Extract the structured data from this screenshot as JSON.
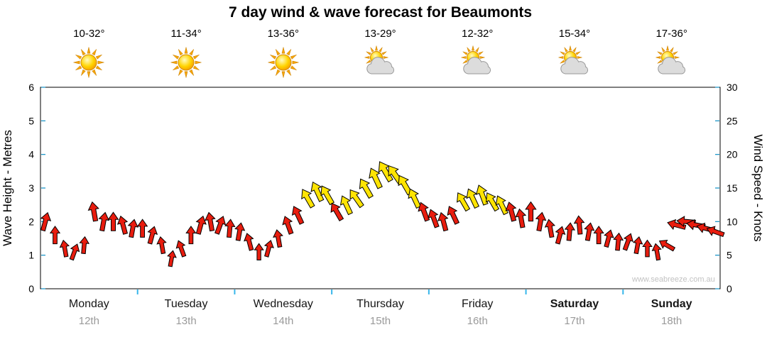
{
  "title": "7 day wind & wave forecast for Beaumonts",
  "watermark": "www.seabreeze.com.au",
  "colors": {
    "light_wind": "#e81c0e",
    "moderate_wind": "#ffe402",
    "arrow_outline": "#000000",
    "tick": "#1e96c8",
    "day_tick": "#38b6ea",
    "plot_border": "#000000",
    "date_text": "#9a9a9a"
  },
  "chart_data": {
    "type": "scatter",
    "subtype": "wind-direction-arrows",
    "title": "7 day wind & wave forecast for Beaumonts",
    "y_axis_left": {
      "label": "Wave Height - Metres",
      "min": 0,
      "max": 6,
      "ticks": [
        0,
        1,
        2,
        3,
        4,
        5,
        6
      ]
    },
    "y_axis_right": {
      "label": "Wind Speed - Knots",
      "min": 0,
      "max": 30,
      "ticks": [
        0,
        5,
        10,
        15,
        20,
        25,
        30
      ]
    },
    "days": [
      {
        "name": "Monday",
        "date": "12th",
        "temp": "10-32°",
        "icon": "sunny",
        "weekend": false
      },
      {
        "name": "Tuesday",
        "date": "13th",
        "temp": "11-34°",
        "icon": "sunny",
        "weekend": false
      },
      {
        "name": "Wednesday",
        "date": "14th",
        "temp": "13-36°",
        "icon": "sunny",
        "weekend": false
      },
      {
        "name": "Thursday",
        "date": "15th",
        "temp": "13-29°",
        "icon": "partly-cloudy",
        "weekend": false
      },
      {
        "name": "Friday",
        "date": "16th",
        "temp": "12-32°",
        "icon": "partly-cloudy",
        "weekend": false
      },
      {
        "name": "Saturday",
        "date": "17th",
        "temp": "15-34°",
        "icon": "partly-cloudy",
        "weekend": true
      },
      {
        "name": "Sunday",
        "date": "18th",
        "temp": "17-36°",
        "icon": "partly-cloudy",
        "weekend": true
      }
    ],
    "wind": [
      {
        "day": "Monday",
        "knots": [
          10,
          8,
          6,
          5.5,
          6.5,
          11.5,
          10,
          10,
          9.5,
          9
        ],
        "dir_deg": [
          15,
          0,
          -10,
          20,
          5,
          -10,
          10,
          0,
          -15,
          10
        ],
        "color": [
          "r",
          "r",
          "r",
          "r",
          "r",
          "r",
          "r",
          "r",
          "r",
          "r"
        ]
      },
      {
        "day": "Tuesday",
        "knots": [
          9,
          8,
          6.5,
          4.5,
          6,
          8,
          9.5,
          10,
          9.5,
          9
        ],
        "dir_deg": [
          0,
          15,
          -10,
          10,
          -20,
          0,
          15,
          -10,
          20,
          5
        ],
        "color": [
          "r",
          "r",
          "r",
          "r",
          "r",
          "r",
          "r",
          "r",
          "r",
          "r"
        ]
      },
      {
        "day": "Wednesday",
        "knots": [
          8.5,
          7,
          5.5,
          6,
          7.5,
          9.5,
          11,
          13.5,
          14.5,
          14
        ],
        "dir_deg": [
          10,
          -15,
          0,
          15,
          -10,
          -20,
          -25,
          -30,
          -25,
          -30
        ],
        "color": [
          "r",
          "r",
          "r",
          "r",
          "r",
          "r",
          "r",
          "y",
          "y",
          "y"
        ]
      },
      {
        "day": "Thursday",
        "knots": [
          11.5,
          12.5,
          13.5,
          15,
          16.5,
          17.5,
          17,
          15.5,
          13.5,
          11.5
        ],
        "dir_deg": [
          -30,
          -25,
          -35,
          -30,
          -25,
          -30,
          -35,
          -30,
          -25,
          -20
        ],
        "color": [
          "r",
          "y",
          "y",
          "y",
          "y",
          "y",
          "y",
          "y",
          "y",
          "r"
        ]
      },
      {
        "day": "Friday",
        "knots": [
          10.5,
          10,
          11,
          13,
          13.5,
          14,
          13,
          12.5,
          11.5,
          10.5
        ],
        "dir_deg": [
          -20,
          -15,
          -25,
          -30,
          -25,
          -20,
          -30,
          -25,
          -15,
          -10
        ],
        "color": [
          "r",
          "r",
          "r",
          "y",
          "y",
          "y",
          "y",
          "y",
          "r",
          "r"
        ]
      },
      {
        "day": "Saturday",
        "knots": [
          11.5,
          10,
          9,
          8,
          8.5,
          9.5,
          8.5,
          8,
          7.5,
          7
        ],
        "dir_deg": [
          0,
          10,
          -10,
          15,
          5,
          -5,
          10,
          0,
          15,
          5
        ],
        "color": [
          "r",
          "r",
          "r",
          "r",
          "r",
          "r",
          "r",
          "r",
          "r",
          "r"
        ]
      },
      {
        "day": "Sunday",
        "knots": [
          7,
          6.5,
          6,
          5.5,
          6.5,
          9.5,
          10,
          9.5,
          9,
          8.5
        ],
        "dir_deg": [
          20,
          10,
          0,
          -10,
          -60,
          -75,
          -85,
          -80,
          -75,
          -70
        ],
        "color": [
          "r",
          "r",
          "r",
          "r",
          "r",
          "r",
          "r",
          "r",
          "r",
          "r"
        ]
      }
    ]
  }
}
